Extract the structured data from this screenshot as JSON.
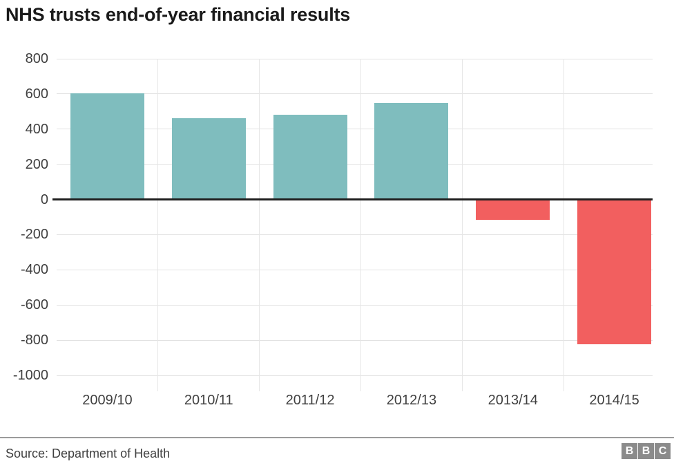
{
  "chart": {
    "title": "NHS trusts end-of-year financial results"
  },
  "chart_data": {
    "type": "bar",
    "title": "NHS trusts end-of-year financial results",
    "categories": [
      "2009/10",
      "2010/11",
      "2011/12",
      "2012/13",
      "2013/14",
      "2014/15"
    ],
    "values": [
      605,
      461,
      481,
      548,
      -115,
      -822
    ],
    "xlabel": "",
    "ylabel": "",
    "ylim": [
      -1000,
      800
    ],
    "yticks": [
      800,
      600,
      400,
      200,
      0,
      -200,
      -400,
      -600,
      -800,
      -1000
    ],
    "grid": true,
    "legend": false,
    "positive_color": "#7fbdbe",
    "negative_color": "#f25f5f",
    "zero_axis_color": "#1f1f1f"
  },
  "footer": {
    "source": "Source: Department of Health",
    "logo_letters": [
      "B",
      "B",
      "C"
    ]
  }
}
